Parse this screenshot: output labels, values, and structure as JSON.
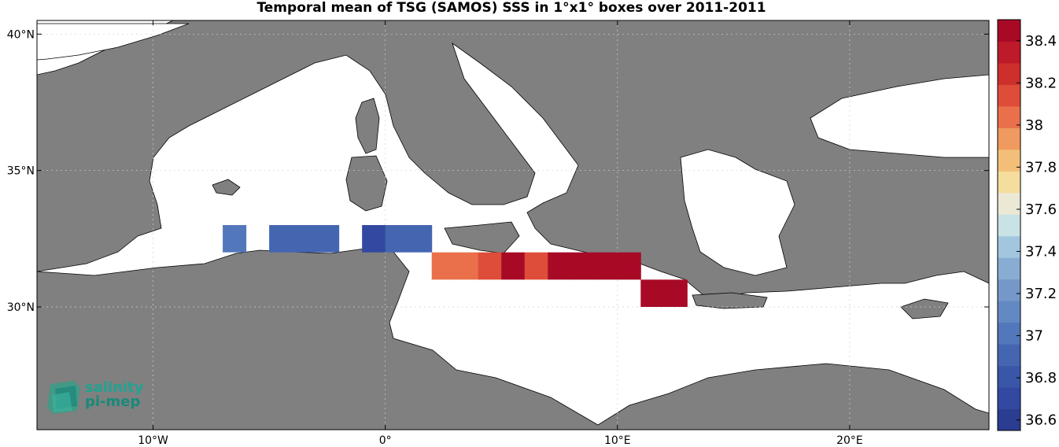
{
  "title": "Temporal mean of TSG (SAMOS) SSS in 1°x1° boxes over 2011-2011",
  "map": {
    "lon_range": [
      -15,
      26
    ],
    "lat_range": [
      25.5,
      40.5
    ],
    "land_color": "#808080",
    "sea_color": "#ffffff",
    "x_ticks": [
      {
        "lon": -10,
        "label": "10°W"
      },
      {
        "lon": 0,
        "label": "0°"
      },
      {
        "lon": 10,
        "label": "10°E"
      },
      {
        "lon": 20,
        "label": "20°E"
      }
    ],
    "y_ticks": [
      {
        "lat": 40,
        "label": "40°N"
      },
      {
        "lat": 35,
        "label": "35°N"
      },
      {
        "lat": 30,
        "label": "30°N"
      }
    ],
    "boxes": [
      {
        "lon": -7,
        "lat": 32,
        "sss": 37.0
      },
      {
        "lon": -5,
        "lat": 32,
        "sss": 36.9
      },
      {
        "lon": -4,
        "lat": 32,
        "sss": 36.9
      },
      {
        "lon": -3,
        "lat": 32,
        "sss": 36.9
      },
      {
        "lon": -1,
        "lat": 32,
        "sss": 36.7
      },
      {
        "lon": 0,
        "lat": 32,
        "sss": 36.95
      },
      {
        "lon": 1,
        "lat": 32,
        "sss": 36.95
      },
      {
        "lon": 2,
        "lat": 31,
        "sss": 38.05
      },
      {
        "lon": 3,
        "lat": 31,
        "sss": 38.05
      },
      {
        "lon": 4,
        "lat": 31,
        "sss": 38.15
      },
      {
        "lon": 5,
        "lat": 31,
        "sss": 38.5
      },
      {
        "lon": 6,
        "lat": 31,
        "sss": 38.15
      },
      {
        "lon": 7,
        "lat": 31,
        "sss": 38.5
      },
      {
        "lon": 8,
        "lat": 31,
        "sss": 38.5
      },
      {
        "lon": 9,
        "lat": 31,
        "sss": 38.5
      },
      {
        "lon": 10,
        "lat": 31,
        "sss": 38.5
      },
      {
        "lon": 11,
        "lat": 30,
        "sss": 38.45
      },
      {
        "lon": 12,
        "lat": 30,
        "sss": 38.45
      }
    ]
  },
  "colorbar": {
    "min": 36.55,
    "max": 38.5,
    "ticks": [
      {
        "value": 38.4,
        "label": "38.4"
      },
      {
        "value": 38.2,
        "label": "38.2"
      },
      {
        "value": 38.0,
        "label": "38"
      },
      {
        "value": 37.8,
        "label": "37.8"
      },
      {
        "value": 37.6,
        "label": "37.6"
      },
      {
        "value": 37.4,
        "label": "37.4"
      },
      {
        "value": 37.2,
        "label": "37.2"
      },
      {
        "value": 37.0,
        "label": "37"
      },
      {
        "value": 36.8,
        "label": "36.8"
      },
      {
        "value": 36.6,
        "label": "36.6"
      }
    ],
    "colors": [
      "#2b3d91",
      "#3348a0",
      "#3a56a8",
      "#4466b1",
      "#5277ba",
      "#6389c3",
      "#7598c9",
      "#89acd2",
      "#a2c6de",
      "#c9e2e6",
      "#ebe9d6",
      "#f5dd9d",
      "#f3bf78",
      "#ef9a5e",
      "#e9704a",
      "#dd4d39",
      "#cc2f2c",
      "#bd1a2a",
      "#a80a26"
    ]
  },
  "logo": {
    "line1": "salinity",
    "line2": "pi-mep"
  }
}
